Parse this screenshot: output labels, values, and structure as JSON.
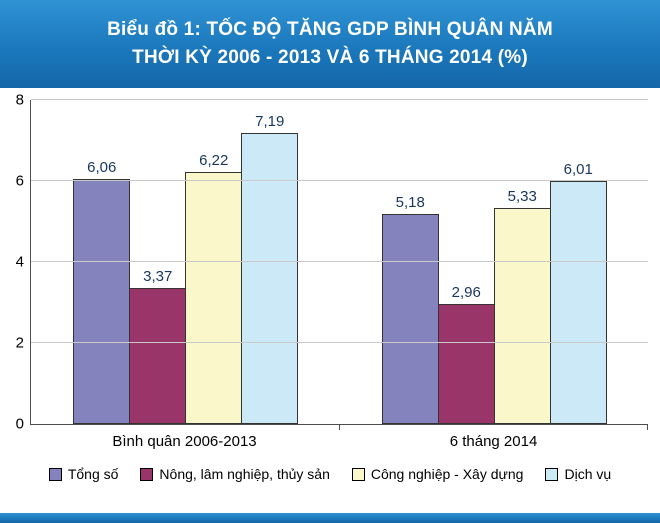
{
  "header": {
    "title_line1": "Biểu đồ 1: TỐC ĐỘ TĂNG GDP BÌNH QUÂN NĂM",
    "title_line2": "THỜI KỲ 2006 - 2013 VÀ 6 THÁNG 2014 (%)"
  },
  "chart_data": {
    "type": "bar",
    "title": "Biểu đồ 1: TỐC ĐỘ TĂNG GDP BÌNH QUÂN NĂM THỜI KỲ 2006 - 2013 VÀ 6 THÁNG 2014 (%)",
    "categories": [
      "Bình quân 2006-2013",
      "6 tháng 2014"
    ],
    "series": [
      {
        "name": "Tổng số",
        "color": "#8583bd",
        "values": [
          6.06,
          5.18
        ],
        "labels": [
          "6,06",
          "5,18"
        ]
      },
      {
        "name": "Nông, lâm nghiệp, thủy sản",
        "color": "#9a3569",
        "values": [
          3.37,
          2.96
        ],
        "labels": [
          "3,37",
          "2,96"
        ]
      },
      {
        "name": "Công nghiệp - Xây dựng",
        "color": "#faf7cb",
        "values": [
          6.22,
          5.33
        ],
        "labels": [
          "6,22",
          "5,33"
        ]
      },
      {
        "name": "Dịch vụ",
        "color": "#cbe9f6",
        "values": [
          7.19,
          6.01
        ],
        "labels": [
          "7,19",
          "6,01"
        ]
      }
    ],
    "ylim": [
      0,
      8
    ],
    "yticks": [
      0,
      2,
      4,
      6,
      8
    ],
    "grid": true,
    "legend_position": "bottom",
    "value_label_decimal_separator": ","
  },
  "colors": {
    "header_bg": "#1b78bc",
    "value_label": "#17375e",
    "gridline": "#c9c9c9",
    "axis": "#4d4d4d"
  }
}
